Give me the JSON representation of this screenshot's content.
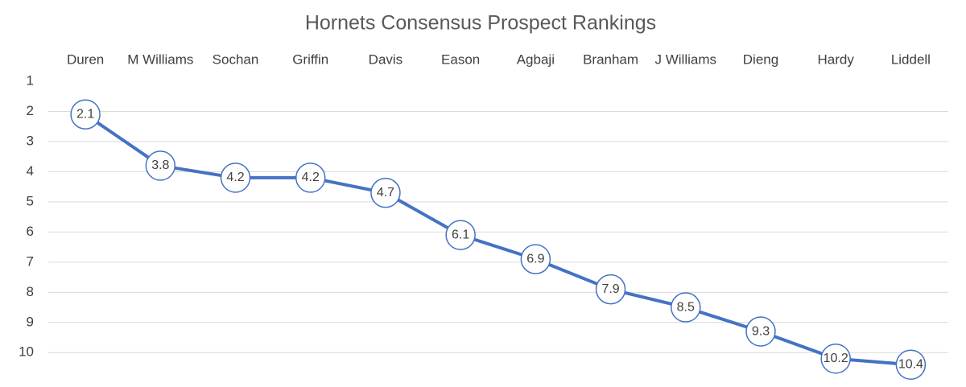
{
  "chart_data": {
    "type": "line",
    "title": "Hornets Consensus Prospect Rankings",
    "categories": [
      "Duren",
      "M Williams",
      "Sochan",
      "Griffin",
      "Davis",
      "Eason",
      "Agbaji",
      "Branham",
      "J Williams",
      "Dieng",
      "Hardy",
      "Liddell"
    ],
    "values": [
      2.1,
      3.8,
      4.2,
      4.2,
      4.7,
      6.1,
      6.9,
      7.9,
      8.5,
      9.3,
      10.2,
      10.4
    ],
    "color": "#4472c4",
    "ylim": [
      1,
      10.5
    ],
    "yticks": [
      1,
      2,
      3,
      4,
      5,
      6,
      7,
      8,
      9,
      10
    ],
    "y_reversed": true,
    "grid": true
  }
}
